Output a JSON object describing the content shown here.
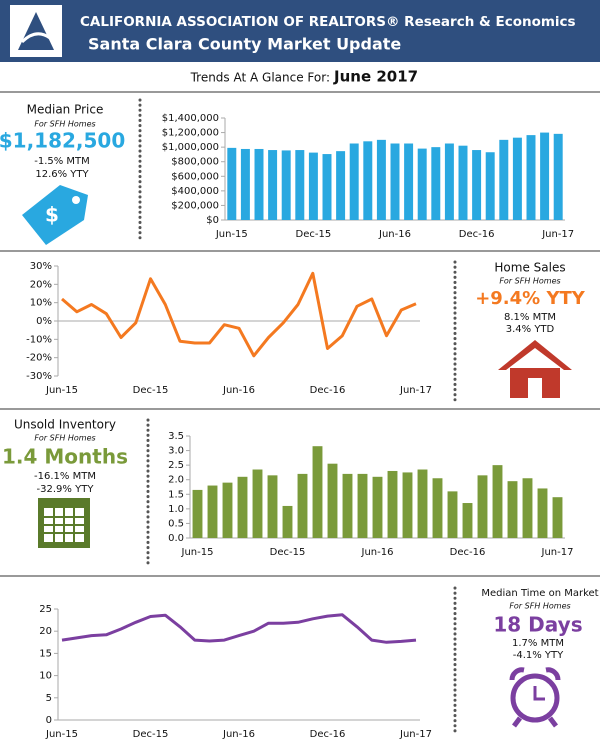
{
  "header": {
    "title": "CALIFORNIA ASSOCIATION OF REALTORS® Research & Economics",
    "subtitle": "Santa Clara County Market Update",
    "trend_label": "Trends At A Glance For:",
    "trend_date": "June 2017"
  },
  "panels": [
    {
      "title": "Median Price",
      "note": "For SFH Homes",
      "value": "$1,182,500",
      "lines": [
        "-1.5% MTM",
        "12.6% YTY"
      ]
    },
    {
      "title": "Home Sales",
      "note": "For SFH Homes",
      "value": "+9.4% YTY",
      "lines": [
        "8.1% MTM",
        "3.4% YTD"
      ]
    },
    {
      "title": "Unsold Inventory",
      "note": "For SFH Homes",
      "value": "1.4 Months",
      "lines": [
        "-16.1% MTM",
        "-32.9% YTY"
      ]
    },
    {
      "title": "Median Time on Market",
      "note": "For SFH Homes",
      "value": "18 Days",
      "lines": [
        "1.7% MTM",
        "-4.1% YTY"
      ]
    }
  ],
  "chart_data": [
    {
      "type": "bar",
      "color": "#29a8e0",
      "categories": [
        "Jun-15",
        null,
        null,
        null,
        null,
        null,
        "Dec-15",
        null,
        null,
        null,
        null,
        null,
        "Jun-16",
        null,
        null,
        null,
        null,
        null,
        "Dec-16",
        null,
        null,
        null,
        null,
        null,
        "Jun-17"
      ],
      "values": [
        990000,
        975000,
        975000,
        960000,
        955000,
        960000,
        925000,
        905000,
        945000,
        1050000,
        1080000,
        1100000,
        1050000,
        1050000,
        980000,
        1000000,
        1050000,
        1020000,
        960000,
        930000,
        1100000,
        1130000,
        1165000,
        1200000,
        1182500
      ],
      "ylim": [
        0,
        1400000
      ],
      "yticks": [
        {
          "value": 0,
          "label": "$0"
        },
        {
          "value": 200000,
          "label": "$200,000"
        },
        {
          "value": 400000,
          "label": "$400,000"
        },
        {
          "value": 600000,
          "label": "$600,000"
        },
        {
          "value": 800000,
          "label": "$800,000"
        },
        {
          "value": 1000000,
          "label": "$1,000,000"
        },
        {
          "value": 1200000,
          "label": "$1,200,000"
        },
        {
          "value": 1400000,
          "label": "$1,400,000"
        }
      ]
    },
    {
      "type": "line",
      "color": "#f47920",
      "categories": [
        "Jun-15",
        null,
        null,
        null,
        null,
        null,
        "Dec-15",
        null,
        null,
        null,
        null,
        null,
        "Jun-16",
        null,
        null,
        null,
        null,
        null,
        "Dec-16",
        null,
        null,
        null,
        null,
        null,
        "Jun-17"
      ],
      "values": [
        12,
        5,
        9,
        4,
        -9,
        -1,
        23,
        9,
        -11,
        -12,
        -12,
        -2,
        -4,
        -19,
        -9,
        -1,
        9,
        26,
        -15,
        -8,
        8,
        12,
        -8,
        6,
        9.4
      ],
      "ylim": [
        -30,
        30
      ],
      "yticks": [
        {
          "value": -30,
          "label": "-30%"
        },
        {
          "value": -20,
          "label": "-20%"
        },
        {
          "value": -10,
          "label": "-10%"
        },
        {
          "value": 0,
          "label": "0%"
        },
        {
          "value": 10,
          "label": "10%"
        },
        {
          "value": 20,
          "label": "20%"
        },
        {
          "value": 30,
          "label": "30%"
        }
      ]
    },
    {
      "type": "bar",
      "color": "#7a9a3a",
      "categories": [
        "Jun-15",
        null,
        null,
        null,
        null,
        null,
        "Dec-15",
        null,
        null,
        null,
        null,
        null,
        "Jun-16",
        null,
        null,
        null,
        null,
        null,
        "Dec-16",
        null,
        null,
        null,
        null,
        null,
        "Jun-17"
      ],
      "values": [
        1.65,
        1.8,
        1.9,
        2.1,
        2.35,
        2.15,
        1.1,
        2.2,
        3.15,
        2.55,
        2.2,
        2.2,
        2.1,
        2.3,
        2.25,
        2.35,
        2.05,
        1.6,
        1.2,
        2.15,
        2.5,
        1.95,
        2.05,
        1.7,
        1.4
      ],
      "ylim": [
        0,
        3.5
      ],
      "yticks": [
        {
          "value": 0,
          "label": "0.0"
        },
        {
          "value": 0.5,
          "label": "0.5"
        },
        {
          "value": 1,
          "label": "1.0"
        },
        {
          "value": 1.5,
          "label": "1.5"
        },
        {
          "value": 2,
          "label": "2.0"
        },
        {
          "value": 2.5,
          "label": "2.5"
        },
        {
          "value": 3,
          "label": "3.0"
        },
        {
          "value": 3.5,
          "label": "3.5"
        }
      ]
    },
    {
      "type": "line",
      "color": "#7b3fa0",
      "categories": [
        "Jun-15",
        null,
        null,
        null,
        null,
        null,
        "Dec-15",
        null,
        null,
        null,
        null,
        null,
        "Jun-16",
        null,
        null,
        null,
        null,
        null,
        "Dec-16",
        null,
        null,
        null,
        null,
        null,
        "Jun-17"
      ],
      "values": [
        18,
        18.5,
        19,
        19.2,
        20.5,
        22,
        23.3,
        23.6,
        21,
        18,
        17.8,
        18,
        19,
        20,
        21.8,
        21.8,
        22,
        22.8,
        23.4,
        23.7,
        21,
        18,
        17.5,
        17.7,
        18
      ],
      "ylim": [
        0,
        25
      ],
      "yticks": [
        0,
        5,
        10,
        15,
        20,
        25
      ]
    }
  ]
}
